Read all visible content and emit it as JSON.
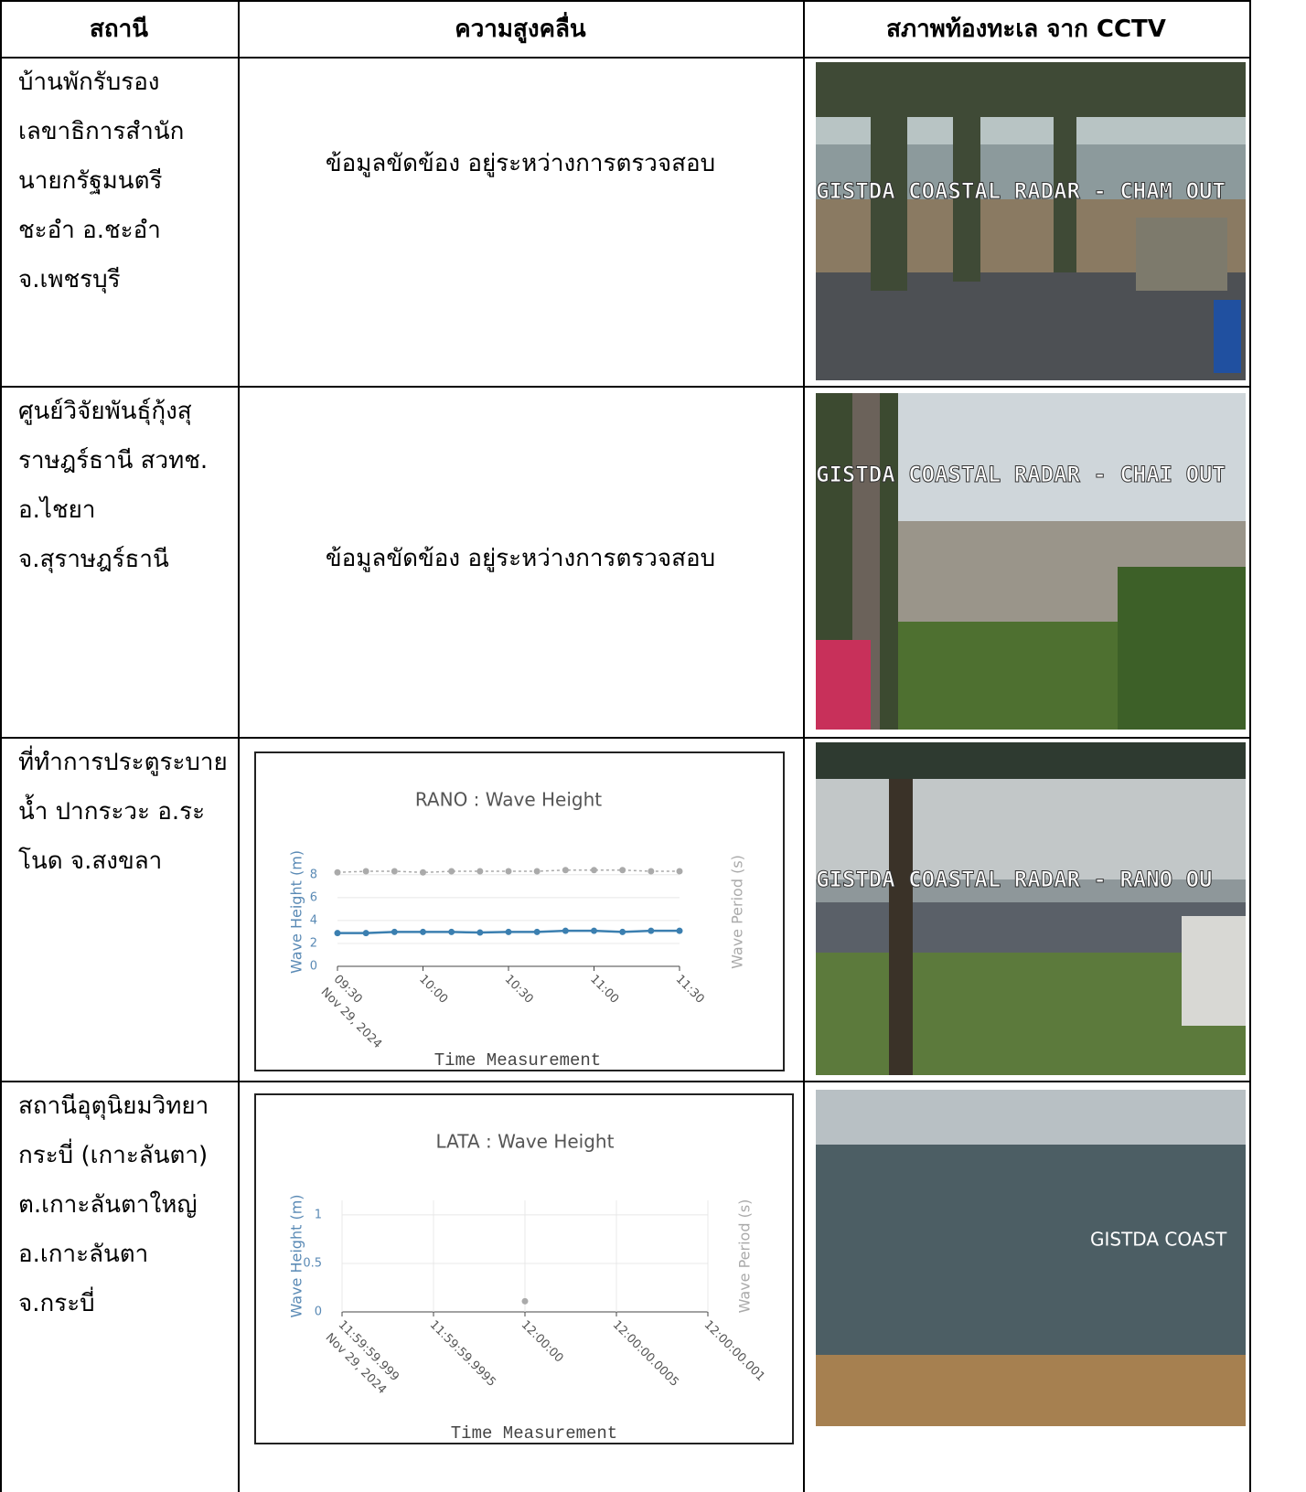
{
  "table": {
    "header": [
      "สถานี",
      "ความสูงคลื่น",
      "สภาพท้องทะเล จาก CCTV"
    ],
    "rows": [
      {
        "station": [
          "บ้านพักรับรอง",
          "เลขาธิการสำนัก",
          "นายกรัฐมนตรี",
          "ชะอำ อ.ชะอำ",
          "จ.เพชรบุรี"
        ],
        "wave_text": "ข้อมูลขัดข้อง อยู่ระหว่างการตรวจสอบ",
        "cctv_text": "GISTDA COASTAL RADAR - CHAM OUT"
      },
      {
        "station": [
          "ศูนย์วิจัยพันธุ์กุ้งสุ",
          "ราษฎร์ธานี สวทช.",
          "อ.ไชยา",
          "จ.สุราษฎร์ธานี"
        ],
        "wave_text": "ข้อมูลขัดข้อง อยู่ระหว่างการตรวจสอบ",
        "cctv_text": "GISTDA COASTAL RADAR - CHAI OUT"
      },
      {
        "station": [
          "ที่ทำการประตูระบาย",
          "น้ำ ปากระวะ อ.ระ",
          "โนด จ.สงขลา"
        ],
        "chart": {
          "type": "line",
          "title": "RANO : Wave Height",
          "ylabel": "Wave Height (m)",
          "y2label": "Wave Period (s)",
          "xlabel": "Time Measurement",
          "x": [
            "09:30",
            "09:40",
            "09:50",
            "10:00",
            "10:10",
            "10:20",
            "10:30",
            "10:40",
            "10:50",
            "11:00",
            "11:10",
            "11:20",
            "11:30"
          ],
          "xticks": [
            "09:30",
            "10:00",
            "10:30",
            "11:00",
            "11:30"
          ],
          "date_label": "Nov 29, 2024",
          "ylim": [
            0,
            9.5
          ],
          "yticks": [
            0,
            2,
            4,
            6,
            8
          ],
          "grid": true,
          "series": [
            {
              "color": "#3b7fb0",
              "values": [
                2.9,
                2.9,
                3.0,
                3.0,
                3.0,
                2.95,
                3.0,
                3.0,
                3.1,
                3.1,
                3.0,
                3.1,
                3.1
              ]
            },
            {
              "color": "#aaaaaa",
              "dash": true,
              "values": [
                8.2,
                8.3,
                8.3,
                8.2,
                8.3,
                8.3,
                8.3,
                8.3,
                8.4,
                8.4,
                8.4,
                8.3,
                8.3
              ]
            }
          ]
        },
        "cctv_text": "GISTDA COASTAL RADAR - RANO OU"
      },
      {
        "station": [
          "สถานีอุตุนิยมวิทยา",
          "กระบี่ (เกาะลันตา)",
          "ต.เกาะลันตาใหญ่",
          "อ.เกาะลันตา",
          "จ.กระบี่"
        ],
        "chart": {
          "type": "scatter",
          "title": "LATA : Wave Height",
          "ylabel": "Wave Height (m)",
          "y2label": "Wave Period (s)",
          "xlabel": "Time Measurement",
          "x": [
            "12:00:00"
          ],
          "xticks": [
            "11:59:59.999",
            "11:59:59.9995",
            "12:00:00",
            "12:00:00.0005",
            "12:00:00.001"
          ],
          "date_label": "Nov 29, 2024",
          "ylim": [
            0,
            1.15
          ],
          "yticks": [
            0,
            0.5,
            1
          ],
          "grid": true,
          "series": [
            {
              "color": "#aaaaaa",
              "values": [
                0.11
              ]
            }
          ]
        },
        "cctv_text": "GISTDA COAST"
      }
    ]
  }
}
